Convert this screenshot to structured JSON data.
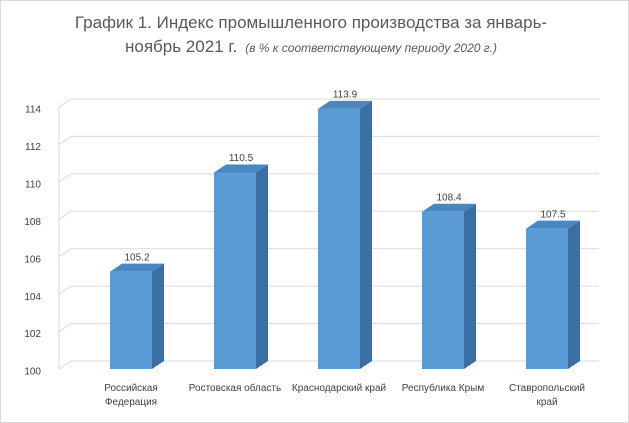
{
  "chart_data": {
    "type": "bar3d",
    "title": "График 1. Индекс промышленного производства за январь-ноябрь 2021 г.",
    "subtitle": "(в % к соответствующему периоду 2020 г.)",
    "categories": [
      "Российская Федерация",
      "Ростовская область",
      "Краснодарский край",
      "Республика Крым",
      "Ставропольский край"
    ],
    "values": [
      105.2,
      110.5,
      113.9,
      108.4,
      107.5
    ],
    "color": "#5b9bd5",
    "ylim": [
      100,
      114
    ],
    "yticks": [
      100,
      102,
      104,
      106,
      108,
      110,
      112,
      114
    ],
    "grid": true
  }
}
